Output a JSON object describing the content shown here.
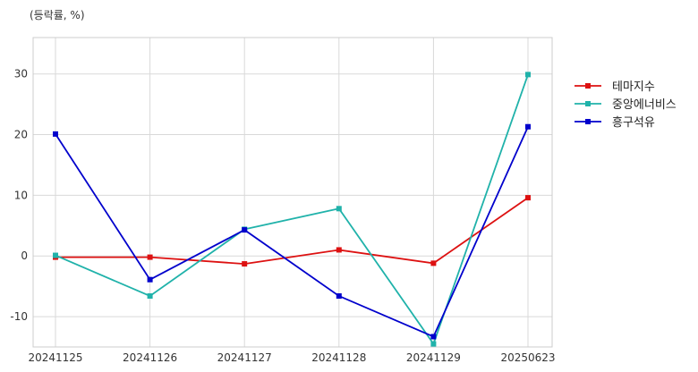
{
  "chart_data": {
    "type": "line",
    "unit_label": "(등락률, %)",
    "title": "",
    "xlabel": "",
    "ylabel": "",
    "categories": [
      "20241125",
      "20241126",
      "20241127",
      "20241128",
      "20241129",
      "20250623"
    ],
    "ylim": [
      -15,
      36
    ],
    "yticks": [
      -10,
      0,
      10,
      20,
      30
    ],
    "grid": true,
    "legend_position": "right",
    "series": [
      {
        "name": "테마지수",
        "color": "#dd1111",
        "values": [
          -0.2,
          -0.2,
          -1.3,
          1.0,
          -1.2,
          9.6
        ]
      },
      {
        "name": "중앙에너비스",
        "color": "#20b2aa",
        "values": [
          0.1,
          -6.6,
          4.4,
          7.8,
          -14.5,
          29.9
        ]
      },
      {
        "name": "흥구석유",
        "color": "#0000cc",
        "values": [
          20.1,
          -3.9,
          4.3,
          -6.6,
          -13.3,
          21.3
        ]
      }
    ]
  }
}
